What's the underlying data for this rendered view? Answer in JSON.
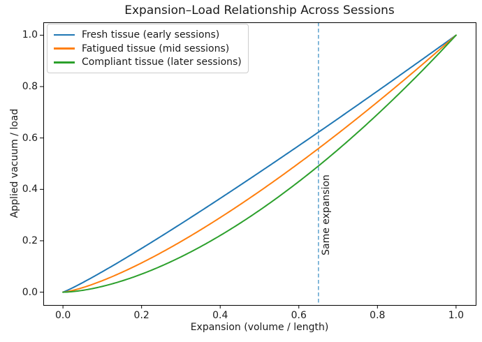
{
  "chart_data": {
    "type": "line",
    "title": "Expansion–Load Relationship Across Sessions",
    "xlabel": "Expansion (volume / length)",
    "ylabel": "Applied vacuum / load",
    "xlim": [
      -0.05,
      1.05
    ],
    "ylim": [
      -0.05,
      1.05
    ],
    "grid": false,
    "legend_position": "upper left",
    "xticks": {
      "values": [
        0.0,
        0.2,
        0.4,
        0.6,
        0.8,
        1.0
      ],
      "labels": [
        "0.0",
        "0.2",
        "0.4",
        "0.6",
        "0.8",
        "1.0"
      ]
    },
    "yticks": {
      "values": [
        0.0,
        0.2,
        0.4,
        0.6,
        0.8,
        1.0
      ],
      "labels": [
        "0.0",
        "0.2",
        "0.4",
        "0.6",
        "0.8",
        "1.0"
      ]
    },
    "x": [
      0.0,
      0.05,
      0.1,
      0.15,
      0.2,
      0.25,
      0.3,
      0.35,
      0.4,
      0.45,
      0.5,
      0.55,
      0.6,
      0.65,
      0.7,
      0.75,
      0.8,
      0.85,
      0.9,
      0.95,
      1.0
    ],
    "series": [
      {
        "name": "Fresh tissue (early sessions)",
        "color": "#1f77b4",
        "exponent": 1.1,
        "values": [
          0.0,
          0.037,
          0.079,
          0.124,
          0.17,
          0.218,
          0.266,
          0.315,
          0.365,
          0.415,
          0.466,
          0.518,
          0.57,
          0.623,
          0.675,
          0.729,
          0.782,
          0.836,
          0.891,
          0.945,
          1.0
        ]
      },
      {
        "name": "Fatigued tissue (mid sessions)",
        "color": "#ff7f0e",
        "exponent": 1.35,
        "values": [
          0.0,
          0.018,
          0.045,
          0.077,
          0.114,
          0.154,
          0.197,
          0.242,
          0.29,
          0.34,
          0.392,
          0.446,
          0.502,
          0.559,
          0.618,
          0.678,
          0.74,
          0.803,
          0.867,
          0.933,
          1.0
        ]
      },
      {
        "name": "Compliant tissue (later sessions)",
        "color": "#2ca02c",
        "exponent": 1.65,
        "values": [
          0.0,
          0.007,
          0.022,
          0.044,
          0.07,
          0.102,
          0.137,
          0.177,
          0.221,
          0.268,
          0.319,
          0.373,
          0.43,
          0.491,
          0.555,
          0.622,
          0.692,
          0.765,
          0.84,
          0.919,
          1.0
        ]
      }
    ],
    "annotation": {
      "label": "Same expansion",
      "line_x": 0.65,
      "text_x": 0.67,
      "text_y": 0.3,
      "line_color": "#4292c6",
      "line_style": "dashed"
    }
  }
}
